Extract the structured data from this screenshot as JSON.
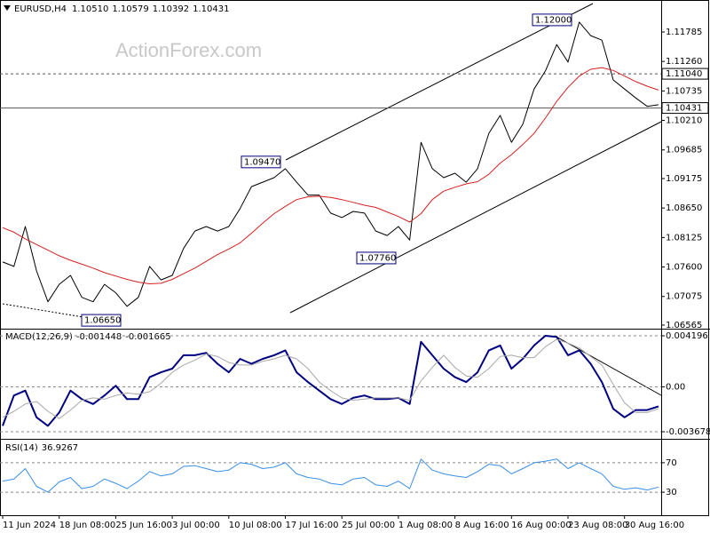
{
  "chart_data": [
    {
      "type": "line",
      "title": "EURUSD,H4",
      "watermark": "ActionForex.com",
      "ohlc": [
        {
          "value": 1.1051,
          "label": "1.10510"
        },
        {
          "value": 1.10579,
          "label": "1.10579"
        },
        {
          "value": 1.10392,
          "label": "1.10392"
        },
        {
          "value": 1.10431,
          "label": "1.10431"
        }
      ],
      "ylim": [
        1.06533,
        1.12291
      ],
      "yticks": [
        1.11785,
        {
          "value": 1.1126,
          "label": "1.11260"
        },
        1.10735,
        {
          "value": 1.1021,
          "label": "1.10210"
        },
        1.09685,
        1.09175,
        {
          "value": 1.0865,
          "label": "1.08650"
        },
        1.08125,
        {
          "value": 1.076,
          "label": "1.07600"
        },
        1.07075,
        1.06565
      ],
      "grid": false,
      "levels": [
        {
          "value": 1.1104,
          "label": "1.11040",
          "style": "dashed"
        },
        {
          "value": 1.10431,
          "style": "solid"
        }
      ],
      "annotations": [
        {
          "value": 1.12,
          "label": "1.12000"
        },
        {
          "value": 1.0947,
          "label": "1.09470"
        },
        {
          "value": 1.0776,
          "label": "1.07760"
        },
        {
          "value": 1.0665,
          "label": "1.06650"
        }
      ],
      "series": [
        {
          "color": "#000000",
          "width": 1,
          "values": [
            1.0769,
            1.0761,
            1.0832,
            1.0753,
            1.0698,
            1.0729,
            1.0745,
            1.0706,
            1.0698,
            1.0729,
            1.0714,
            1.069,
            1.0706,
            1.0761,
            1.0737,
            1.0745,
            1.0793,
            1.0824,
            1.0832,
            1.0824,
            1.0832,
            1.0864,
            1.0903,
            1.0911,
            1.0919,
            1.0935,
            1.0911,
            1.0888,
            1.0888,
            1.0856,
            1.0848,
            1.0859,
            1.0856,
            1.0824,
            1.0816,
            1.0832,
            1.0808,
            1.0982,
            1.0935,
            1.0919,
            1.0927,
            1.0911,
            1.0935,
            1.0998,
            1.103,
            1.0982,
            1.1014,
            1.1077,
            1.1109,
            1.1156,
            1.1125,
            1.1196,
            1.1172,
            1.1164,
            1.1093,
            1.1077,
            1.1061,
            1.1046,
            1.1049
          ]
        },
        {
          "color": "#d62020",
          "width": 1,
          "values": [
            1.083,
            1.0822,
            1.081,
            1.08,
            1.079,
            1.078,
            1.0772,
            1.0765,
            1.0758,
            1.075,
            1.0744,
            1.0738,
            1.0733,
            1.073,
            1.0731,
            1.0738,
            1.0748,
            1.0758,
            1.077,
            1.0782,
            1.0792,
            1.0803,
            1.082,
            1.0838,
            1.0855,
            1.0868,
            1.088,
            1.0885,
            1.0886,
            1.0884,
            1.088,
            1.0875,
            1.087,
            1.0866,
            1.0858,
            1.085,
            1.084,
            1.0855,
            1.088,
            1.0895,
            1.0902,
            1.0908,
            1.0912,
            1.0925,
            1.0945,
            1.096,
            1.0978,
            1.0998,
            1.1025,
            1.1055,
            1.108,
            1.11,
            1.1112,
            1.1115,
            1.111,
            1.11,
            1.109,
            1.1082,
            1.1075
          ]
        }
      ]
    },
    {
      "type": "line",
      "title": "MACD(12,26,9)",
      "readings": [
        -0.001448,
        -0.001665
      ],
      "ylim": [
        -0.004116,
        0.004634
      ],
      "yticks": [
        0.004196,
        {
          "value": 0,
          "label": "0.00"
        },
        -0.003678
      ],
      "grid": true,
      "series": [
        {
          "color": "#000080",
          "width": 2,
          "values": [
            -0.0032,
            -0.0007,
            -0.0003,
            -0.0025,
            -0.0032,
            -0.0021,
            -0.0003,
            -0.001,
            -0.0014,
            -0.0007,
            0.0001,
            -0.001,
            -0.001,
            0.0008,
            0.0012,
            0.0015,
            0.0026,
            0.0026,
            0.0028,
            0.0019,
            0.0012,
            0.0023,
            0.0019,
            0.0023,
            0.0026,
            0.003,
            0.0012,
            0.0004,
            -0.0003,
            -0.001,
            -0.0014,
            -0.0009,
            -0.0007,
            -0.001,
            -0.001,
            -0.0009,
            -0.0014,
            0.0037,
            0.0026,
            0.0015,
            0.0008,
            0.0004,
            0.0012,
            0.003,
            0.0034,
            0.0015,
            0.0023,
            0.0034,
            0.0042,
            0.0041,
            0.0026,
            0.003,
            0.0019,
            0.0004,
            -0.0018,
            -0.0025,
            -0.0019,
            -0.0019,
            -0.0016
          ]
        },
        {
          "color": "#a8a8a8",
          "width": 1,
          "values": [
            -0.0025,
            -0.002,
            -0.0014,
            -0.0012,
            -0.002,
            -0.0026,
            -0.0019,
            -0.0011,
            -0.0009,
            -0.001,
            -0.0007,
            -0.0005,
            -0.0006,
            -0.0004,
            0.0003,
            0.0012,
            0.0018,
            0.0022,
            0.0027,
            0.0025,
            0.002,
            0.0018,
            0.0018,
            0.0021,
            0.0023,
            0.0026,
            0.0023,
            0.0015,
            0.0004,
            -0.0003,
            -0.0009,
            -0.0011,
            -0.001,
            -0.0009,
            -0.0009,
            -0.0009,
            -0.0011,
            0.0005,
            0.0016,
            0.0026,
            0.0016,
            0.0009,
            0.0008,
            0.0015,
            0.0025,
            0.0026,
            0.0024,
            0.0024,
            0.0033,
            0.0039,
            0.0036,
            0.0032,
            0.0025,
            0.0018,
            0.0002,
            -0.0013,
            -0.0021,
            -0.0021,
            -0.0018
          ]
        }
      ]
    },
    {
      "type": "line",
      "title": "RSI(14)",
      "readings": [
        36.9267
      ],
      "ylim": [
        0,
        100
      ],
      "yticks": [
        70,
        30
      ],
      "grid": true,
      "categories": [
        "11 Jun 2024",
        null,
        null,
        null,
        null,
        "18 Jun 08:00",
        null,
        null,
        null,
        null,
        "25 Jun 16:00",
        null,
        null,
        null,
        null,
        "3 Jul 00:00",
        null,
        null,
        null,
        null,
        "10 Jul 08:00",
        null,
        null,
        null,
        null,
        "17 Jul 16:00",
        null,
        null,
        null,
        null,
        "25 Jul 00:00",
        null,
        null,
        null,
        null,
        "1 Aug 08:00",
        null,
        null,
        null,
        null,
        "8 Aug 16:00",
        null,
        null,
        null,
        null,
        "16 Aug 00:00",
        null,
        null,
        null,
        null,
        "23 Aug 08:00",
        null,
        null,
        null,
        null,
        "30 Aug 16:00",
        null,
        null,
        null
      ],
      "series": [
        {
          "color": "#3a8ee6",
          "width": 1,
          "values": [
            45,
            48,
            62,
            38,
            30,
            44,
            50,
            35,
            38,
            48,
            42,
            35,
            45,
            58,
            52,
            55,
            65,
            66,
            62,
            58,
            60,
            70,
            68,
            62,
            64,
            70,
            55,
            50,
            48,
            42,
            40,
            48,
            50,
            40,
            38,
            45,
            35,
            75,
            60,
            55,
            52,
            50,
            58,
            68,
            66,
            55,
            62,
            70,
            72,
            75,
            62,
            70,
            62,
            55,
            38,
            34,
            36,
            33,
            37
          ]
        }
      ]
    }
  ]
}
